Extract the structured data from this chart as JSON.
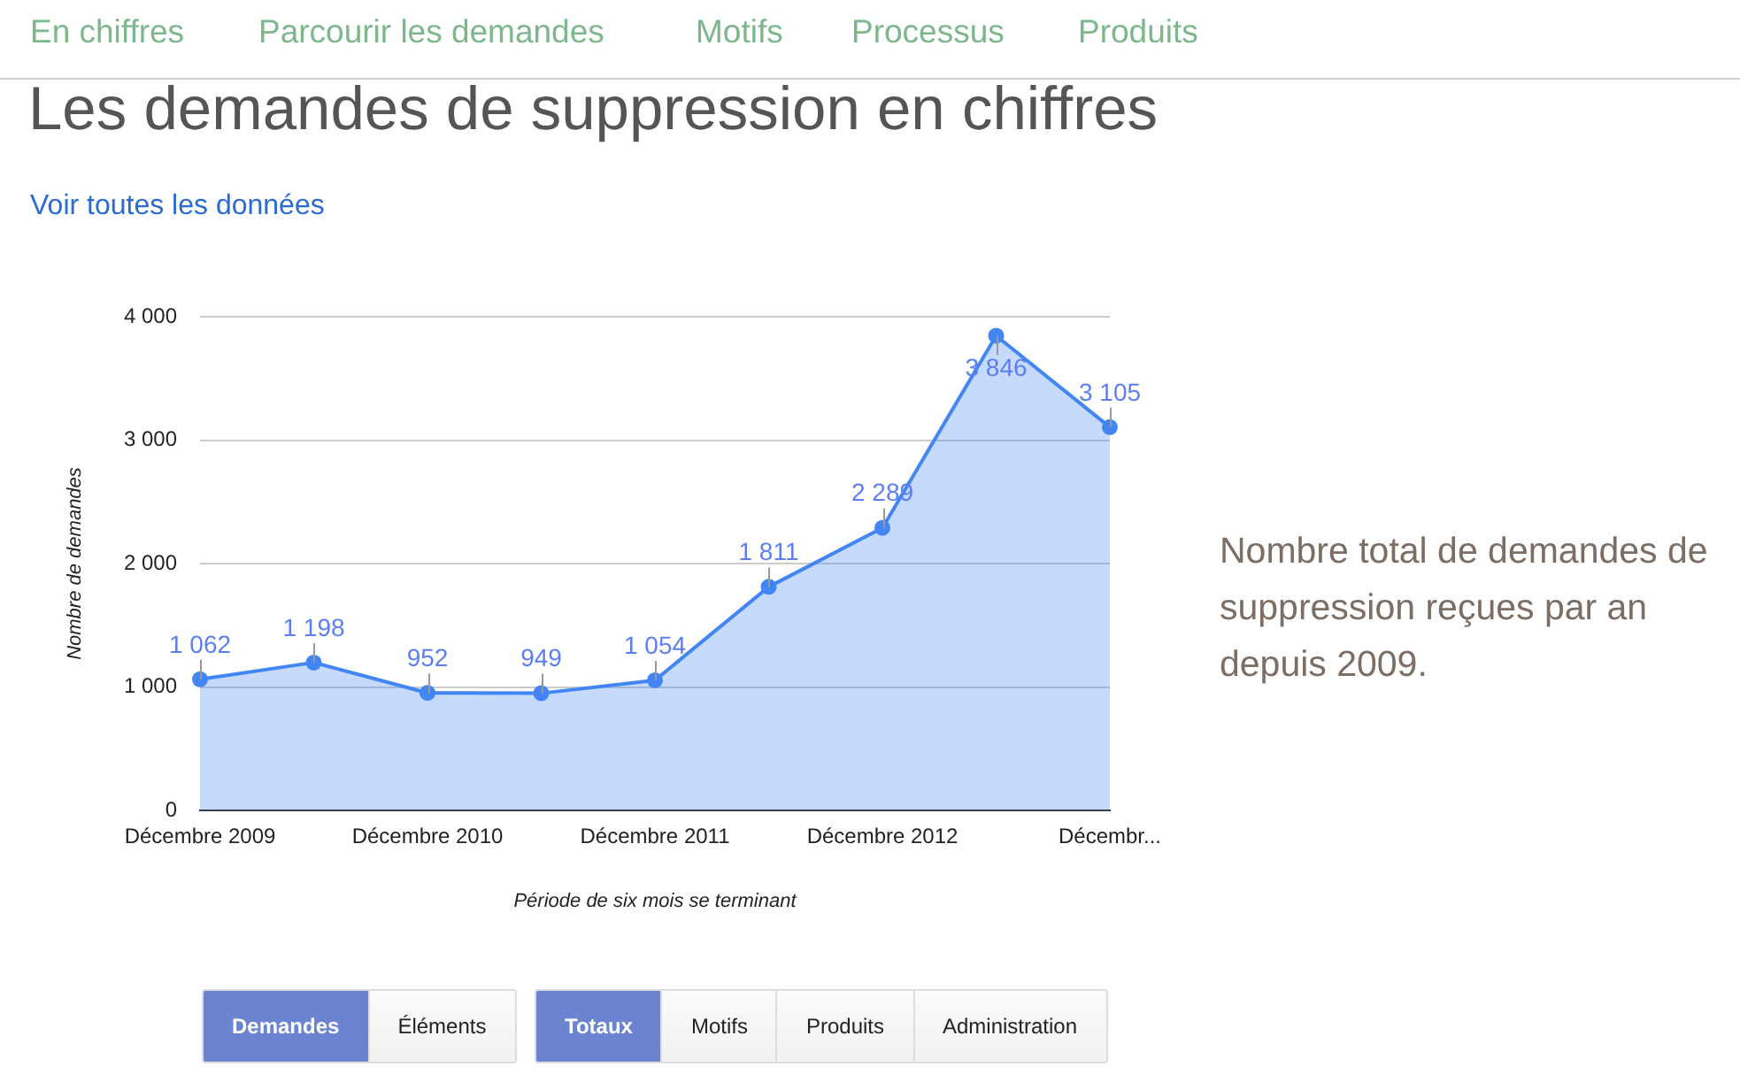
{
  "chart_data": {
    "type": "area",
    "title": "Les demandes de suppression en chiffres",
    "xlabel": "Période de six mois se terminant",
    "ylabel": "Nombre de demandes",
    "categories": [
      "Décembre 2009",
      null,
      "Décembre 2010",
      null,
      "Décembre 2011",
      null,
      "Décembre 2012",
      null,
      "Décembr..."
    ],
    "series": [
      {
        "color": "#4285f4",
        "values": [
          1062,
          1198,
          952,
          949,
          1054,
          1811,
          2289,
          3846,
          3105
        ],
        "value_labels": [
          "1 062",
          "1 198",
          "952",
          "949",
          "1 054",
          "1 811",
          "2 289",
          "3 846",
          "3 105"
        ]
      }
    ],
    "ylim": [
      0,
      4000
    ],
    "yticks": [
      0,
      {
        "value": 1000,
        "label": "1 000"
      },
      {
        "value": 2000,
        "label": "2 000"
      },
      {
        "value": 3000,
        "label": "3 000"
      },
      {
        "value": 4000,
        "label": "4 000"
      }
    ],
    "grid": "y",
    "marker": "circle",
    "annotations": [
      "En chiffres",
      "Parcourir les demandes",
      "Motifs",
      "Processus",
      "Produits",
      "Voir toutes les données",
      "Nombre total de demandes de suppression reçues par an depuis 2009.",
      "Demandes",
      "Éléments",
      "Totaux",
      "Motifs",
      "Produits",
      "Administration"
    ]
  }
}
